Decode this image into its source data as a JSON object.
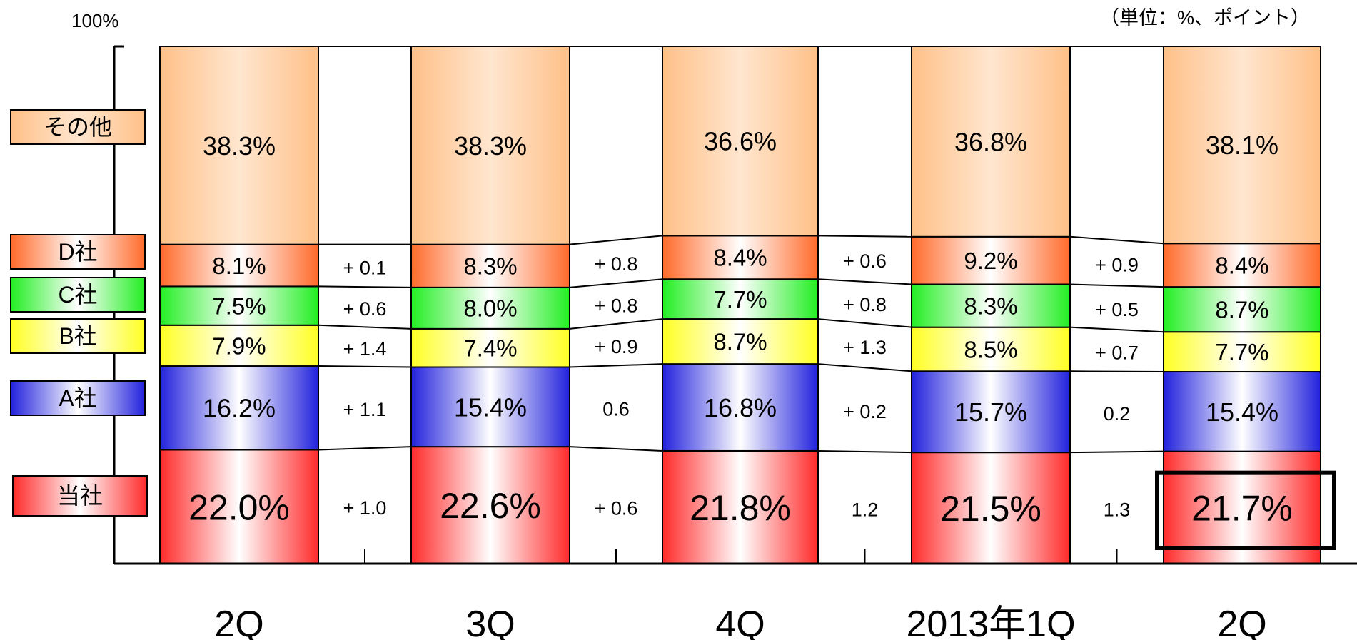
{
  "chart_data": {
    "type": "bar",
    "stacked": true,
    "normalized": true,
    "ylim": [
      0,
      100
    ],
    "y_top_label": "100%",
    "unit_note": "（単位：%、ポイント）",
    "categories": [
      "2Q",
      "3Q",
      "4Q",
      "2013年1Q",
      "2Q"
    ],
    "series": [
      {
        "name": "当社",
        "values": [
          22.0,
          22.6,
          21.8,
          21.5,
          21.7
        ],
        "labels": [
          "22.0%",
          "22.6%",
          "21.8%",
          "21.5%",
          "21.7%"
        ]
      },
      {
        "name": "A社",
        "values": [
          16.2,
          15.4,
          16.8,
          15.7,
          15.4
        ],
        "labels": [
          "16.2%",
          "15.4%",
          "16.8%",
          "15.7%",
          "15.4%"
        ]
      },
      {
        "name": "B社",
        "values": [
          7.9,
          7.4,
          8.7,
          8.5,
          7.7
        ],
        "labels": [
          "7.9%",
          "7.4%",
          "8.7%",
          "8.5%",
          "7.7%"
        ]
      },
      {
        "name": "C社",
        "values": [
          7.5,
          8.0,
          7.7,
          8.3,
          8.7
        ],
        "labels": [
          "7.5%",
          "8.0%",
          "7.7%",
          "8.3%",
          "8.7%"
        ]
      },
      {
        "name": "D社",
        "values": [
          8.1,
          8.3,
          8.4,
          9.2,
          8.4
        ],
        "labels": [
          "8.1%",
          "8.3%",
          "8.4%",
          "9.2%",
          "8.4%"
        ]
      },
      {
        "name": "その他",
        "values": [
          38.3,
          38.3,
          36.6,
          36.8,
          38.1
        ],
        "labels": [
          "38.3%",
          "38.3%",
          "36.6%",
          "36.8%",
          "38.1%"
        ]
      }
    ],
    "changes": {
      "当社": [
        "+ 1.0",
        "+ 0.6",
        "1.2",
        "1.3"
      ],
      "A社": [
        "+ 1.1",
        "0.6",
        "+ 0.2",
        "0.2"
      ],
      "B社": [
        "+ 1.4",
        "+ 0.9",
        "+ 1.3",
        "+ 0.7"
      ],
      "C社": [
        "+ 0.6",
        "+ 0.8",
        "+ 0.8",
        "+ 0.5"
      ],
      "D社": [
        "+ 0.1",
        "+ 0.8",
        "+ 0.6",
        "+ 0.9"
      ]
    },
    "highlight": {
      "series": "当社",
      "category_index": 4
    },
    "colors": {
      "当社": "#ff2a2a",
      "A社": "#2222dd",
      "B社": "#ffff22",
      "C社": "#22ee22",
      "D社": "#ff6a2a",
      "その他": "#ffc088"
    }
  }
}
